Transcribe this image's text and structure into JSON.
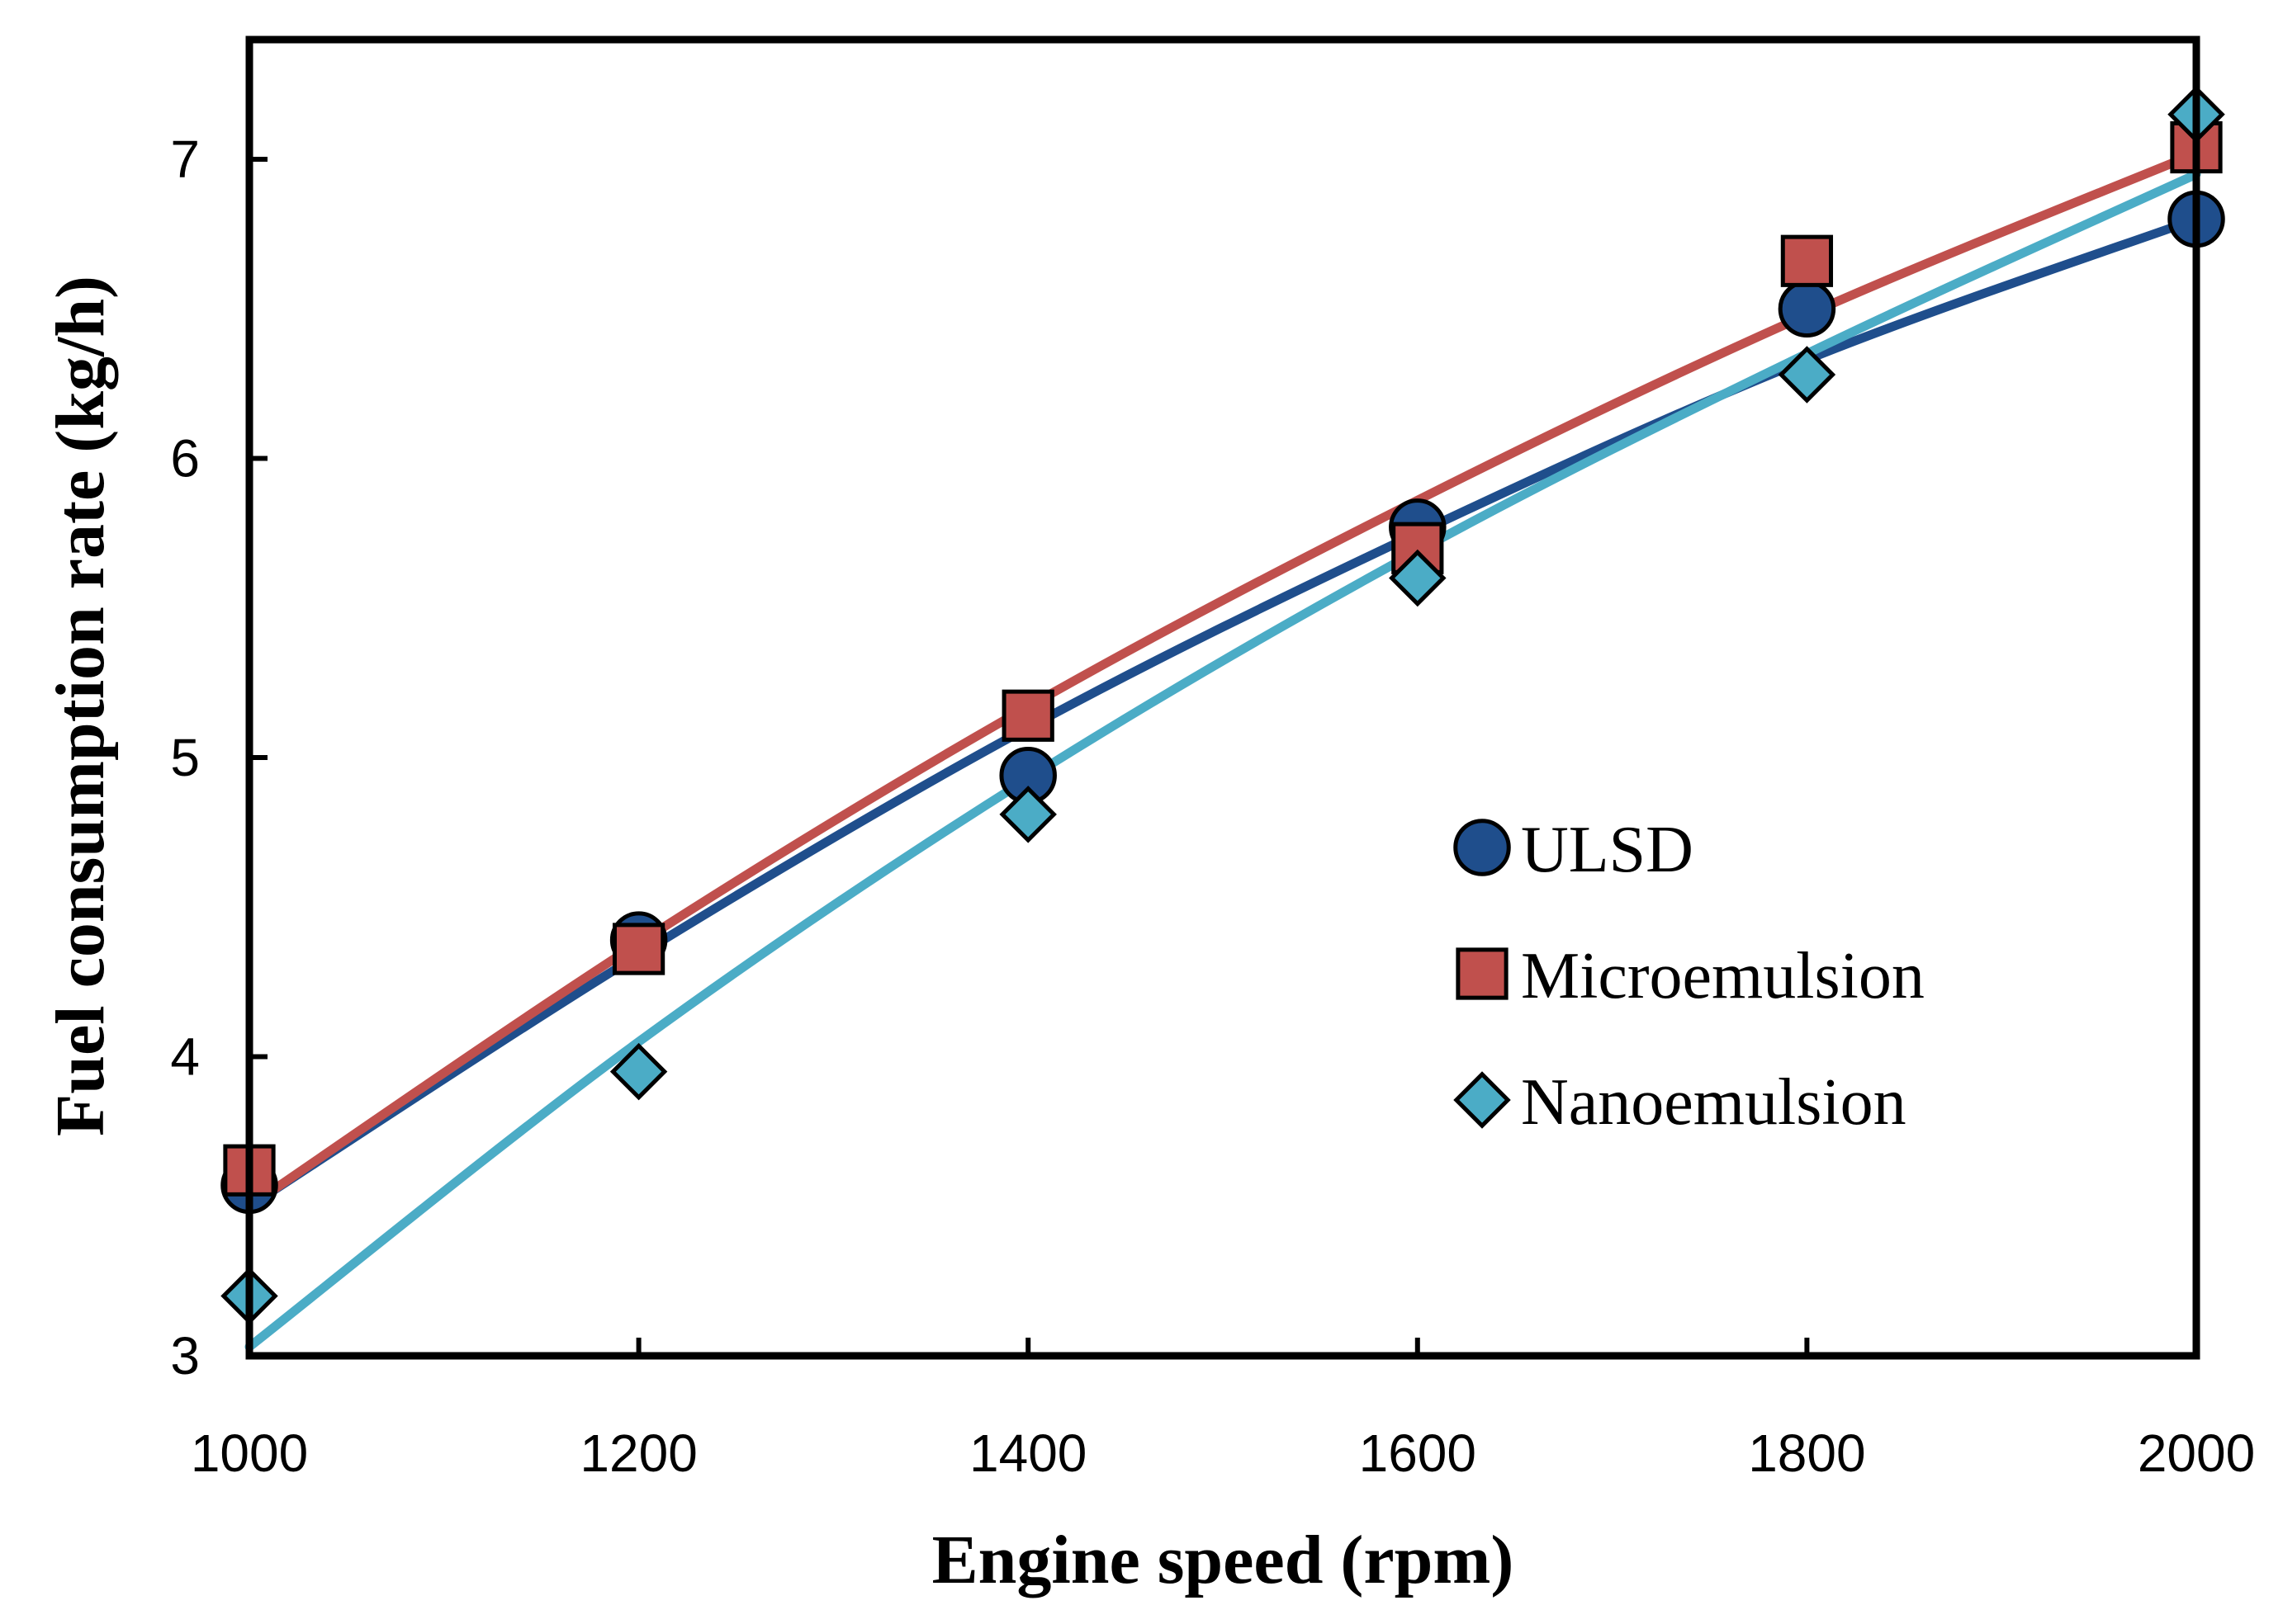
{
  "chart_data": {
    "type": "scatter",
    "title": "",
    "xlabel": "Engine speed (rpm)",
    "ylabel": "Fuel consumption rate (kg/h)",
    "xlim": [
      1000,
      2000
    ],
    "ylim": [
      3,
      7.4
    ],
    "xticks": [
      1000,
      1200,
      1400,
      1600,
      1800,
      2000
    ],
    "yticks": [
      3,
      4,
      5,
      6,
      7
    ],
    "grid": false,
    "legend_position": "center-right",
    "x": [
      1000,
      1200,
      1400,
      1600,
      1800,
      2000
    ],
    "series": [
      {
        "name": "ULSD",
        "marker": "circle",
        "color": "#1f4e8c",
        "values": [
          3.57,
          4.39,
          4.94,
          5.77,
          6.5,
          6.8
        ],
        "trendline": [
          3.5,
          4.34,
          5.1,
          5.75,
          6.33,
          6.8
        ]
      },
      {
        "name": "Microemulsion",
        "marker": "square",
        "color": "#c0504d",
        "values": [
          3.62,
          4.36,
          5.14,
          5.7,
          6.66,
          7.04
        ],
        "trendline": [
          3.5,
          4.38,
          5.17,
          5.86,
          6.48,
          7.02
        ]
      },
      {
        "name": "Nanoemulsion",
        "marker": "diamond",
        "color": "#4bacc6",
        "values": [
          3.2,
          3.95,
          4.81,
          5.6,
          6.28,
          7.15
        ],
        "trendline": [
          3.03,
          4.05,
          4.93,
          5.69,
          6.35,
          6.95
        ]
      }
    ]
  }
}
